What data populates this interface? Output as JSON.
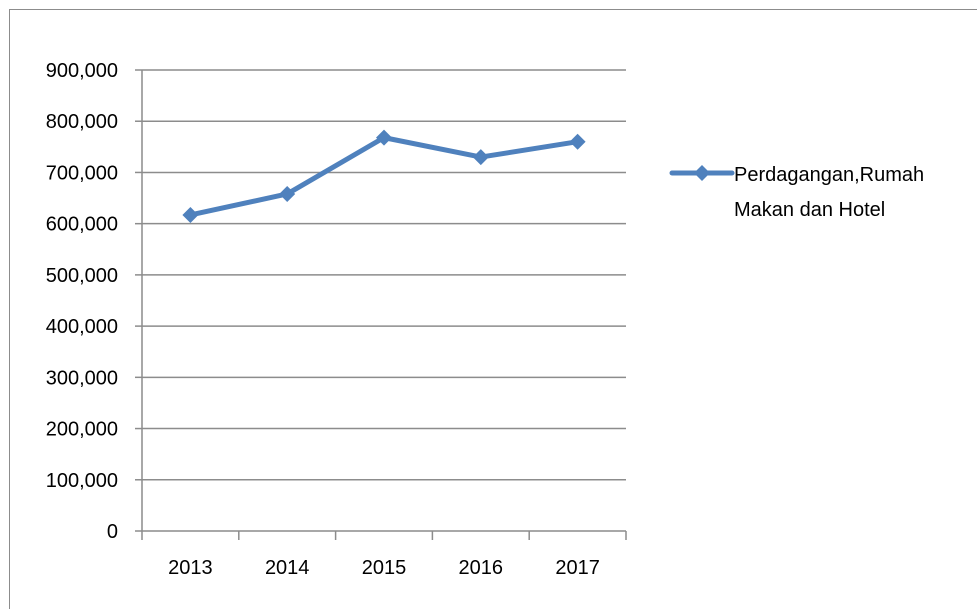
{
  "chart_data": {
    "type": "line",
    "title": "",
    "xlabel": "",
    "ylabel": "",
    "categories": [
      "2013",
      "2014",
      "2015",
      "2016",
      "2017"
    ],
    "ylim": [
      0,
      900000
    ],
    "y_ticks": [
      "0",
      "100,000",
      "200,000",
      "300,000",
      "400,000",
      "500,000",
      "600,000",
      "700,000",
      "800,000",
      "900,000"
    ],
    "grid": true,
    "legend_position": "right",
    "series": [
      {
        "name": "Perdagangan,Rumah Makan dan Hotel",
        "legend_lines": [
          "Perdagangan,Rumah",
          "Makan dan Hotel"
        ],
        "values": [
          617000,
          658000,
          768000,
          730000,
          760000
        ],
        "color": "#4f81bd",
        "marker": "diamond"
      }
    ]
  }
}
